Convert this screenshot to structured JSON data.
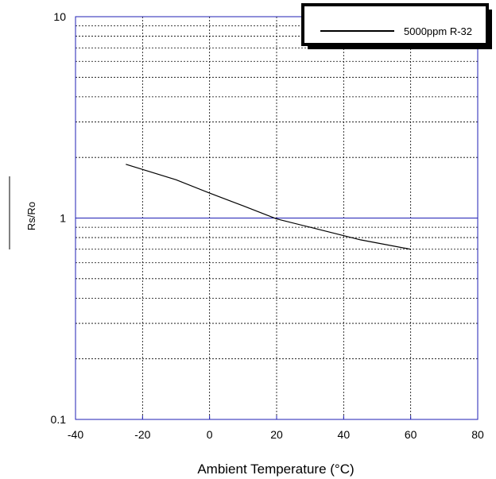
{
  "chart_data": {
    "type": "line",
    "xlabel": "Ambient Temperature (°C)",
    "ylabel": "Rs/Ro",
    "xlim": [
      -40,
      80
    ],
    "ylim": [
      0.1,
      10
    ],
    "y_scale": "log",
    "x_ticks": [
      "-40",
      "-20",
      "0",
      "20",
      "40",
      "60",
      "80"
    ],
    "y_ticks": [
      "0.1",
      "1",
      "10"
    ],
    "grid": true,
    "legend_position": "top-right",
    "colors": {
      "plot_border": "#1f1fb4",
      "grid": "#000000",
      "series": "#000000"
    },
    "series": [
      {
        "name": "5000ppm R-32",
        "x": [
          -25,
          -10,
          0,
          10,
          20,
          30,
          45,
          60
        ],
        "y": [
          1.85,
          1.55,
          1.33,
          1.15,
          0.99,
          0.9,
          0.78,
          0.7
        ]
      }
    ]
  }
}
